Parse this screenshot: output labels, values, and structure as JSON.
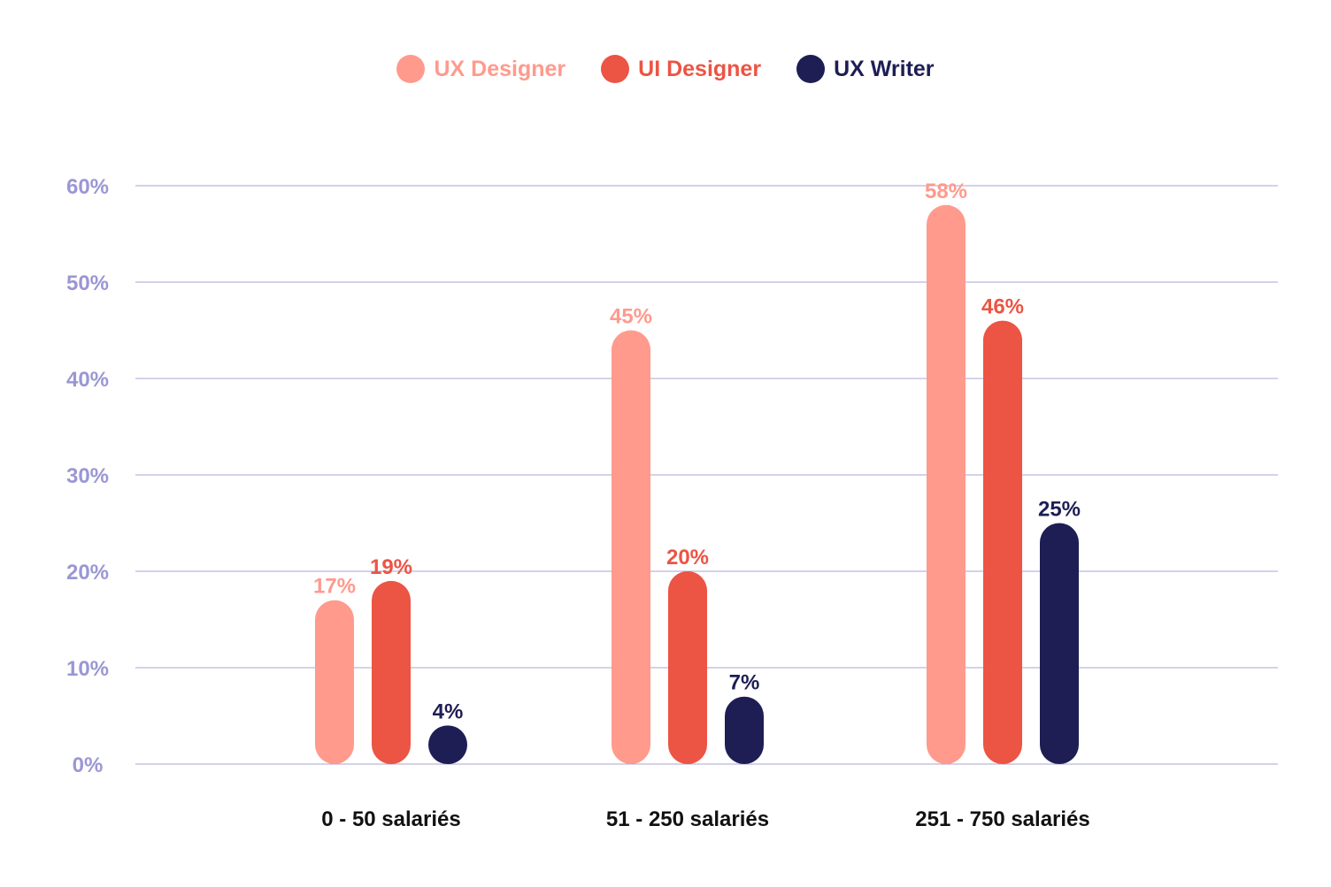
{
  "chart_data": {
    "type": "bar",
    "categories": [
      "0 - 50 salariés",
      "51 - 250 salariés",
      "251 - 750 salariés"
    ],
    "series": [
      {
        "name": "UX Designer",
        "values": [
          17,
          45,
          58
        ],
        "labels": [
          "17%",
          "45%",
          "58%"
        ],
        "color": "#FF9A8D"
      },
      {
        "name": "UI Designer",
        "values": [
          19,
          20,
          46
        ],
        "labels": [
          "19%",
          "20%",
          "46%"
        ],
        "color": "#EC5444"
      },
      {
        "name": "UX Writer",
        "values": [
          4,
          7,
          25
        ],
        "labels": [
          "4%",
          "7%",
          "25%"
        ],
        "color": "#1E1E55"
      }
    ],
    "ylim": [
      0,
      60
    ],
    "yticks": [
      0,
      10,
      20,
      30,
      40,
      50,
      60
    ],
    "ytick_labels": [
      "0%",
      "10%",
      "20%",
      "30%",
      "40%",
      "50%",
      "60%"
    ],
    "grid": true,
    "legend": "top-center",
    "colors": {
      "grid": "#A9A6D3",
      "axis_labels": "#9A97D4",
      "category_labels": "#111111"
    }
  }
}
